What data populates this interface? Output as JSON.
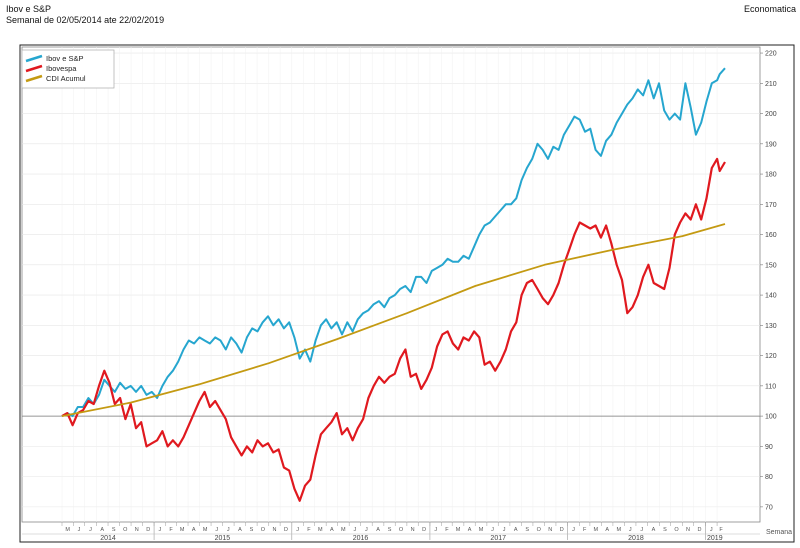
{
  "header": {
    "title": "Ibov e S&P",
    "subtitle": "Semanal de 02/05/2014 ate 22/02/2019",
    "source": "Economatica"
  },
  "chart_data": {
    "type": "line",
    "xlabel": "Semana",
    "ylabel": "",
    "x_start": "2014-05-02",
    "x_end": "2019-02-22",
    "ylim": [
      65,
      222
    ],
    "yticks": [
      70,
      80,
      90,
      100,
      110,
      120,
      130,
      140,
      150,
      160,
      170,
      180,
      190,
      200,
      210,
      220
    ],
    "reference_line": 100,
    "grid": true,
    "legend_position": "top-left",
    "month_labels": [
      "M",
      "J",
      "J",
      "A",
      "S",
      "O",
      "N",
      "D",
      "J",
      "F",
      "M",
      "A",
      "M",
      "J",
      "J",
      "A",
      "S",
      "O",
      "N",
      "D",
      "J",
      "F",
      "M",
      "A",
      "M",
      "J",
      "J",
      "A",
      "S",
      "O",
      "N",
      "D",
      "J",
      "F",
      "M",
      "A",
      "M",
      "J",
      "J",
      "A",
      "S",
      "O",
      "N",
      "D",
      "J",
      "F",
      "M",
      "A",
      "M",
      "J",
      "J",
      "A",
      "S",
      "O",
      "N",
      "D",
      "J",
      "F"
    ],
    "year_labels": [
      {
        "label": "2014",
        "date": "2014-09-01"
      },
      {
        "label": "2015",
        "date": "2015-07-01"
      },
      {
        "label": "2016",
        "date": "2016-07-01"
      },
      {
        "label": "2017",
        "date": "2017-07-01"
      },
      {
        "label": "2018",
        "date": "2018-07-01"
      },
      {
        "label": "2019",
        "date": "2019-01-26"
      }
    ],
    "series": [
      {
        "name": "Ibov e S&P",
        "color": "#26a6cf",
        "points": [
          [
            "2014-05-02",
            100
          ],
          [
            "2014-05-16",
            101
          ],
          [
            "2014-05-30",
            100
          ],
          [
            "2014-06-13",
            103
          ],
          [
            "2014-06-27",
            103
          ],
          [
            "2014-07-11",
            106
          ],
          [
            "2014-07-25",
            104
          ],
          [
            "2014-08-08",
            107
          ],
          [
            "2014-08-22",
            112
          ],
          [
            "2014-09-05",
            110
          ],
          [
            "2014-09-19",
            108
          ],
          [
            "2014-10-03",
            111
          ],
          [
            "2014-10-17",
            109
          ],
          [
            "2014-10-31",
            110
          ],
          [
            "2014-11-14",
            108
          ],
          [
            "2014-11-28",
            110
          ],
          [
            "2014-12-12",
            107
          ],
          [
            "2014-12-26",
            108
          ],
          [
            "2015-01-09",
            106
          ],
          [
            "2015-01-23",
            110
          ],
          [
            "2015-02-06",
            113
          ],
          [
            "2015-02-20",
            115
          ],
          [
            "2015-03-06",
            118
          ],
          [
            "2015-03-20",
            122
          ],
          [
            "2015-04-03",
            125
          ],
          [
            "2015-04-17",
            124
          ],
          [
            "2015-05-01",
            126
          ],
          [
            "2015-05-15",
            125
          ],
          [
            "2015-05-29",
            124
          ],
          [
            "2015-06-12",
            126
          ],
          [
            "2015-06-26",
            125
          ],
          [
            "2015-07-10",
            122
          ],
          [
            "2015-07-24",
            126
          ],
          [
            "2015-08-07",
            124
          ],
          [
            "2015-08-21",
            121
          ],
          [
            "2015-09-04",
            126
          ],
          [
            "2015-09-18",
            129
          ],
          [
            "2015-10-02",
            128
          ],
          [
            "2015-10-16",
            131
          ],
          [
            "2015-10-30",
            133
          ],
          [
            "2015-11-13",
            130
          ],
          [
            "2015-11-27",
            132
          ],
          [
            "2015-12-11",
            129
          ],
          [
            "2015-12-25",
            131
          ],
          [
            "2016-01-08",
            126
          ],
          [
            "2016-01-22",
            119
          ],
          [
            "2016-02-05",
            122
          ],
          [
            "2016-02-19",
            118
          ],
          [
            "2016-03-04",
            125
          ],
          [
            "2016-03-18",
            130
          ],
          [
            "2016-04-01",
            132
          ],
          [
            "2016-04-15",
            129
          ],
          [
            "2016-04-29",
            131
          ],
          [
            "2016-05-13",
            127
          ],
          [
            "2016-05-27",
            131
          ],
          [
            "2016-06-10",
            128
          ],
          [
            "2016-06-24",
            132
          ],
          [
            "2016-07-08",
            134
          ],
          [
            "2016-07-22",
            135
          ],
          [
            "2016-08-05",
            137
          ],
          [
            "2016-08-19",
            138
          ],
          [
            "2016-09-02",
            136
          ],
          [
            "2016-09-16",
            139
          ],
          [
            "2016-09-30",
            140
          ],
          [
            "2016-10-14",
            142
          ],
          [
            "2016-10-28",
            143
          ],
          [
            "2016-11-11",
            141
          ],
          [
            "2016-11-25",
            146
          ],
          [
            "2016-12-09",
            146
          ],
          [
            "2016-12-23",
            144
          ],
          [
            "2017-01-06",
            148
          ],
          [
            "2017-01-20",
            149
          ],
          [
            "2017-02-03",
            150
          ],
          [
            "2017-02-17",
            152
          ],
          [
            "2017-03-03",
            151
          ],
          [
            "2017-03-17",
            151
          ],
          [
            "2017-03-31",
            153
          ],
          [
            "2017-04-14",
            152
          ],
          [
            "2017-04-28",
            156
          ],
          [
            "2017-05-12",
            160
          ],
          [
            "2017-05-26",
            163
          ],
          [
            "2017-06-09",
            164
          ],
          [
            "2017-06-23",
            166
          ],
          [
            "2017-07-07",
            168
          ],
          [
            "2017-07-21",
            170
          ],
          [
            "2017-08-04",
            170
          ],
          [
            "2017-08-18",
            172
          ],
          [
            "2017-09-01",
            178
          ],
          [
            "2017-09-15",
            182
          ],
          [
            "2017-09-29",
            185
          ],
          [
            "2017-10-13",
            190
          ],
          [
            "2017-10-27",
            188
          ],
          [
            "2017-11-10",
            185
          ],
          [
            "2017-11-24",
            189
          ],
          [
            "2017-12-08",
            188
          ],
          [
            "2017-12-22",
            193
          ],
          [
            "2018-01-05",
            196
          ],
          [
            "2018-01-19",
            199
          ],
          [
            "2018-02-02",
            198
          ],
          [
            "2018-02-16",
            194
          ],
          [
            "2018-03-02",
            195
          ],
          [
            "2018-03-16",
            188
          ],
          [
            "2018-03-30",
            186
          ],
          [
            "2018-04-13",
            191
          ],
          [
            "2018-04-27",
            193
          ],
          [
            "2018-05-11",
            197
          ],
          [
            "2018-05-25",
            200
          ],
          [
            "2018-06-08",
            203
          ],
          [
            "2018-06-22",
            205
          ],
          [
            "2018-07-06",
            208
          ],
          [
            "2018-07-20",
            206
          ],
          [
            "2018-08-03",
            211
          ],
          [
            "2018-08-17",
            205
          ],
          [
            "2018-08-31",
            210
          ],
          [
            "2018-09-14",
            201
          ],
          [
            "2018-09-28",
            198
          ],
          [
            "2018-10-12",
            200
          ],
          [
            "2018-10-26",
            198
          ],
          [
            "2018-11-09",
            210
          ],
          [
            "2018-11-23",
            202
          ],
          [
            "2018-12-07",
            193
          ],
          [
            "2018-12-21",
            197
          ],
          [
            "2019-01-04",
            204
          ],
          [
            "2019-01-18",
            210
          ],
          [
            "2019-02-01",
            211
          ],
          [
            "2019-02-08",
            213
          ],
          [
            "2019-02-22",
            215
          ]
        ]
      },
      {
        "name": "Ibovespa",
        "color": "#e0191f",
        "points": [
          [
            "2014-05-02",
            100
          ],
          [
            "2014-05-16",
            101
          ],
          [
            "2014-05-30",
            97
          ],
          [
            "2014-06-13",
            101
          ],
          [
            "2014-06-27",
            102
          ],
          [
            "2014-07-11",
            105
          ],
          [
            "2014-07-25",
            104
          ],
          [
            "2014-08-08",
            110
          ],
          [
            "2014-08-22",
            115
          ],
          [
            "2014-09-05",
            111
          ],
          [
            "2014-09-19",
            104
          ],
          [
            "2014-10-03",
            106
          ],
          [
            "2014-10-17",
            99
          ],
          [
            "2014-10-31",
            104
          ],
          [
            "2014-11-14",
            96
          ],
          [
            "2014-11-28",
            98
          ],
          [
            "2014-12-12",
            90
          ],
          [
            "2014-12-26",
            91
          ],
          [
            "2015-01-09",
            92
          ],
          [
            "2015-01-23",
            95
          ],
          [
            "2015-02-06",
            90
          ],
          [
            "2015-02-20",
            92
          ],
          [
            "2015-03-06",
            90
          ],
          [
            "2015-03-20",
            93
          ],
          [
            "2015-04-03",
            97
          ],
          [
            "2015-04-17",
            101
          ],
          [
            "2015-05-01",
            105
          ],
          [
            "2015-05-15",
            108
          ],
          [
            "2015-05-29",
            103
          ],
          [
            "2015-06-12",
            105
          ],
          [
            "2015-06-26",
            102
          ],
          [
            "2015-07-10",
            99
          ],
          [
            "2015-07-24",
            93
          ],
          [
            "2015-08-07",
            90
          ],
          [
            "2015-08-21",
            87
          ],
          [
            "2015-09-04",
            90
          ],
          [
            "2015-09-18",
            88
          ],
          [
            "2015-10-02",
            92
          ],
          [
            "2015-10-16",
            90
          ],
          [
            "2015-10-30",
            91
          ],
          [
            "2015-11-13",
            88
          ],
          [
            "2015-11-27",
            89
          ],
          [
            "2015-12-11",
            83
          ],
          [
            "2015-12-25",
            82
          ],
          [
            "2016-01-08",
            76
          ],
          [
            "2016-01-22",
            72
          ],
          [
            "2016-02-05",
            77
          ],
          [
            "2016-02-19",
            79
          ],
          [
            "2016-03-04",
            87
          ],
          [
            "2016-03-18",
            94
          ],
          [
            "2016-04-01",
            96
          ],
          [
            "2016-04-15",
            98
          ],
          [
            "2016-04-29",
            101
          ],
          [
            "2016-05-13",
            94
          ],
          [
            "2016-05-27",
            96
          ],
          [
            "2016-06-10",
            92
          ],
          [
            "2016-06-24",
            96
          ],
          [
            "2016-07-08",
            99
          ],
          [
            "2016-07-22",
            106
          ],
          [
            "2016-08-05",
            110
          ],
          [
            "2016-08-19",
            113
          ],
          [
            "2016-09-02",
            111
          ],
          [
            "2016-09-16",
            113
          ],
          [
            "2016-09-30",
            114
          ],
          [
            "2016-10-14",
            119
          ],
          [
            "2016-10-28",
            122
          ],
          [
            "2016-11-11",
            113
          ],
          [
            "2016-11-25",
            114
          ],
          [
            "2016-12-09",
            109
          ],
          [
            "2016-12-23",
            112
          ],
          [
            "2017-01-06",
            116
          ],
          [
            "2017-01-20",
            123
          ],
          [
            "2017-02-03",
            127
          ],
          [
            "2017-02-17",
            128
          ],
          [
            "2017-03-03",
            124
          ],
          [
            "2017-03-17",
            122
          ],
          [
            "2017-03-31",
            126
          ],
          [
            "2017-04-14",
            125
          ],
          [
            "2017-04-28",
            128
          ],
          [
            "2017-05-12",
            126
          ],
          [
            "2017-05-26",
            117
          ],
          [
            "2017-06-09",
            118
          ],
          [
            "2017-06-23",
            115
          ],
          [
            "2017-07-07",
            118
          ],
          [
            "2017-07-21",
            122
          ],
          [
            "2017-08-04",
            128
          ],
          [
            "2017-08-18",
            131
          ],
          [
            "2017-09-01",
            140
          ],
          [
            "2017-09-15",
            144
          ],
          [
            "2017-09-29",
            145
          ],
          [
            "2017-10-13",
            142
          ],
          [
            "2017-10-27",
            139
          ],
          [
            "2017-11-10",
            137
          ],
          [
            "2017-11-24",
            140
          ],
          [
            "2017-12-08",
            144
          ],
          [
            "2017-12-22",
            150
          ],
          [
            "2018-01-05",
            155
          ],
          [
            "2018-01-19",
            160
          ],
          [
            "2018-02-02",
            164
          ],
          [
            "2018-02-16",
            163
          ],
          [
            "2018-03-02",
            162
          ],
          [
            "2018-03-16",
            163
          ],
          [
            "2018-03-30",
            159
          ],
          [
            "2018-04-13",
            163
          ],
          [
            "2018-04-27",
            157
          ],
          [
            "2018-05-11",
            150
          ],
          [
            "2018-05-25",
            145
          ],
          [
            "2018-06-08",
            134
          ],
          [
            "2018-06-22",
            136
          ],
          [
            "2018-07-06",
            140
          ],
          [
            "2018-07-20",
            146
          ],
          [
            "2018-08-03",
            150
          ],
          [
            "2018-08-17",
            144
          ],
          [
            "2018-08-31",
            143
          ],
          [
            "2018-09-14",
            142
          ],
          [
            "2018-09-28",
            149
          ],
          [
            "2018-10-12",
            160
          ],
          [
            "2018-10-26",
            164
          ],
          [
            "2018-11-09",
            167
          ],
          [
            "2018-11-23",
            165
          ],
          [
            "2018-12-07",
            170
          ],
          [
            "2018-12-21",
            165
          ],
          [
            "2019-01-04",
            172
          ],
          [
            "2019-01-18",
            182
          ],
          [
            "2019-02-01",
            185
          ],
          [
            "2019-02-08",
            181
          ],
          [
            "2019-02-22",
            184
          ]
        ]
      },
      {
        "name": "CDI Acumul",
        "color": "#c49a12",
        "points": [
          [
            "2014-05-02",
            100
          ],
          [
            "2014-11-01",
            104.5
          ],
          [
            "2015-05-01",
            110.5
          ],
          [
            "2015-11-01",
            117.5
          ],
          [
            "2016-05-01",
            125.5
          ],
          [
            "2016-11-01",
            134
          ],
          [
            "2017-05-01",
            143
          ],
          [
            "2017-11-01",
            150
          ],
          [
            "2018-05-01",
            155
          ],
          [
            "2018-11-01",
            159.5
          ],
          [
            "2019-02-22",
            163.5
          ]
        ]
      }
    ]
  }
}
